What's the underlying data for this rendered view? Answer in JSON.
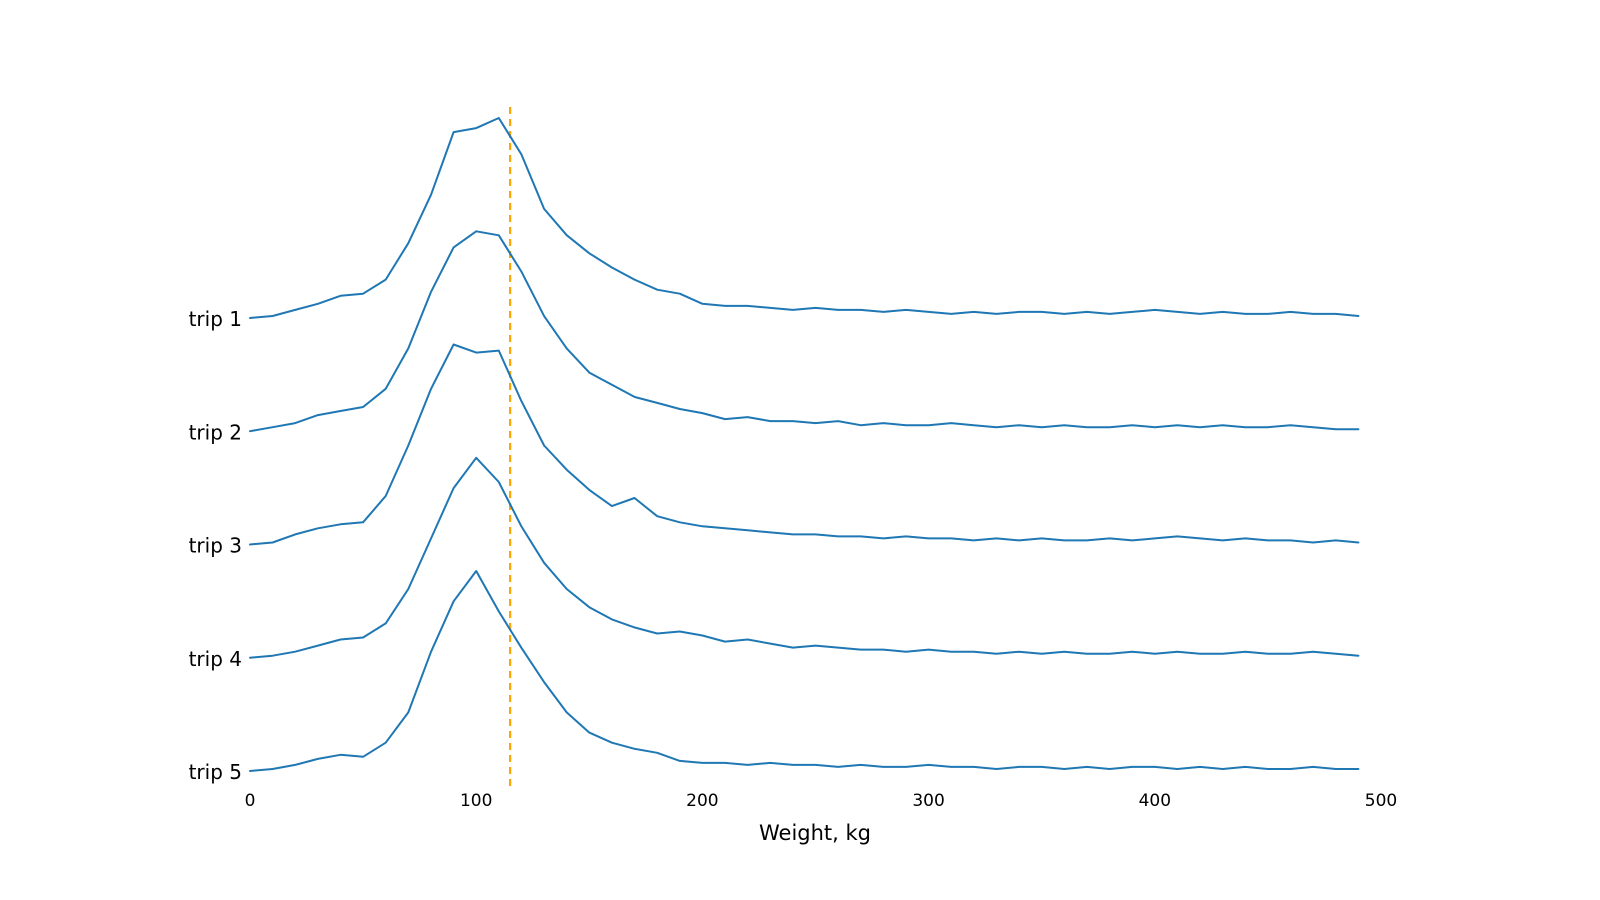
{
  "chart_data": {
    "type": "line",
    "variant": "ridgeline",
    "title": "",
    "xlabel": "Weight, kg",
    "ylabel": "",
    "xlim": [
      0,
      500
    ],
    "x_ticks": [
      "0",
      "100",
      "200",
      "300",
      "400",
      "500"
    ],
    "x_tick_values": [
      0,
      100,
      200,
      300,
      400,
      500
    ],
    "line_color": "#1f77b4",
    "reference_line": {
      "x": 115,
      "color": "#ffa500",
      "style": "dashed"
    },
    "layout": {
      "grid": false,
      "legend": "none",
      "overlap": 1.78,
      "background": "#ffffff"
    },
    "x": [
      0,
      10,
      20,
      30,
      40,
      50,
      60,
      70,
      80,
      90,
      100,
      110,
      120,
      130,
      140,
      150,
      160,
      170,
      180,
      190,
      200,
      210,
      220,
      230,
      240,
      250,
      260,
      270,
      280,
      290,
      300,
      310,
      320,
      330,
      340,
      350,
      360,
      370,
      380,
      390,
      400,
      410,
      420,
      430,
      440,
      450,
      460,
      470,
      480,
      490
    ],
    "series": [
      {
        "name": "trip 1",
        "values": [
          0.01,
          0.02,
          0.05,
          0.08,
          0.12,
          0.13,
          0.2,
          0.38,
          0.62,
          0.93,
          0.95,
          1.0,
          0.82,
          0.55,
          0.42,
          0.33,
          0.26,
          0.2,
          0.15,
          0.13,
          0.08,
          0.07,
          0.07,
          0.06,
          0.05,
          0.06,
          0.05,
          0.05,
          0.04,
          0.05,
          0.04,
          0.03,
          0.04,
          0.03,
          0.04,
          0.04,
          0.03,
          0.04,
          0.03,
          0.04,
          0.05,
          0.04,
          0.03,
          0.04,
          0.03,
          0.03,
          0.04,
          0.03,
          0.03,
          0.02
        ]
      },
      {
        "name": "trip 2",
        "values": [
          0.01,
          0.03,
          0.05,
          0.09,
          0.11,
          0.13,
          0.22,
          0.42,
          0.7,
          0.92,
          1.0,
          0.98,
          0.8,
          0.58,
          0.42,
          0.3,
          0.24,
          0.18,
          0.15,
          0.12,
          0.1,
          0.07,
          0.08,
          0.06,
          0.06,
          0.05,
          0.06,
          0.04,
          0.05,
          0.04,
          0.04,
          0.05,
          0.04,
          0.03,
          0.04,
          0.03,
          0.04,
          0.03,
          0.03,
          0.04,
          0.03,
          0.04,
          0.03,
          0.04,
          0.03,
          0.03,
          0.04,
          0.03,
          0.02,
          0.02
        ]
      },
      {
        "name": "trip 3",
        "values": [
          0.01,
          0.02,
          0.06,
          0.09,
          0.11,
          0.12,
          0.25,
          0.5,
          0.78,
          1.0,
          0.96,
          0.97,
          0.72,
          0.5,
          0.38,
          0.28,
          0.2,
          0.24,
          0.15,
          0.12,
          0.1,
          0.09,
          0.08,
          0.07,
          0.06,
          0.06,
          0.05,
          0.05,
          0.04,
          0.05,
          0.04,
          0.04,
          0.03,
          0.04,
          0.03,
          0.04,
          0.03,
          0.03,
          0.04,
          0.03,
          0.04,
          0.05,
          0.04,
          0.03,
          0.04,
          0.03,
          0.03,
          0.02,
          0.03,
          0.02
        ]
      },
      {
        "name": "trip 4",
        "values": [
          0.01,
          0.02,
          0.04,
          0.07,
          0.1,
          0.11,
          0.18,
          0.35,
          0.6,
          0.85,
          1.0,
          0.88,
          0.66,
          0.48,
          0.35,
          0.26,
          0.2,
          0.16,
          0.13,
          0.14,
          0.12,
          0.09,
          0.1,
          0.08,
          0.06,
          0.07,
          0.06,
          0.05,
          0.05,
          0.04,
          0.05,
          0.04,
          0.04,
          0.03,
          0.04,
          0.03,
          0.04,
          0.03,
          0.03,
          0.04,
          0.03,
          0.04,
          0.03,
          0.03,
          0.04,
          0.03,
          0.03,
          0.04,
          0.03,
          0.02
        ]
      },
      {
        "name": "trip 5",
        "values": [
          0.01,
          0.02,
          0.04,
          0.07,
          0.09,
          0.08,
          0.15,
          0.3,
          0.6,
          0.85,
          1.0,
          0.8,
          0.62,
          0.45,
          0.3,
          0.2,
          0.15,
          0.12,
          0.1,
          0.06,
          0.05,
          0.05,
          0.04,
          0.05,
          0.04,
          0.04,
          0.03,
          0.04,
          0.03,
          0.03,
          0.04,
          0.03,
          0.03,
          0.02,
          0.03,
          0.03,
          0.02,
          0.03,
          0.02,
          0.03,
          0.03,
          0.02,
          0.03,
          0.02,
          0.03,
          0.02,
          0.02,
          0.03,
          0.02,
          0.02
        ]
      }
    ]
  }
}
